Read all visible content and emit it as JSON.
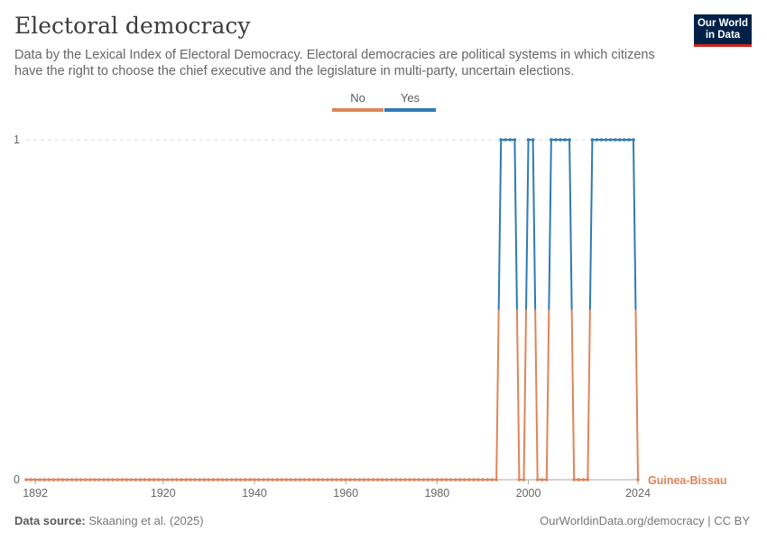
{
  "header": {
    "title": "Electoral democracy",
    "subtitle": "Data by the Lexical Index of Electoral Democracy. Electoral democracies are political systems in which citizens have the right to choose the chief executive and the legislature in multi-party, uncertain elections.",
    "logo_line1": "Our World",
    "logo_line2": "in Data"
  },
  "legend": [
    {
      "label": "No",
      "color": "#e0845a"
    },
    {
      "label": "Yes",
      "color": "#2f7bb5"
    }
  ],
  "footer": {
    "source_label": "Data source:",
    "source_text": "Skaaning et al. (2025)",
    "right_text": "OurWorldinData.org/democracy | CC BY"
  },
  "chart_data": {
    "type": "line",
    "title": "Electoral democracy",
    "series": [
      {
        "name": "Guinea-Bissau",
        "x_start": 1890,
        "x_end": 2024,
        "yes_years": [
          1994,
          1995,
          1996,
          1997,
          2000,
          2001,
          2005,
          2006,
          2007,
          2008,
          2009,
          2014,
          2015,
          2016,
          2017,
          2018,
          2019,
          2020,
          2021,
          2022,
          2023
        ]
      }
    ],
    "y_ticks": [
      "0",
      "1"
    ],
    "x_ticks": [
      "1892",
      "1920",
      "1940",
      "1960",
      "1980",
      "2000",
      "2024"
    ],
    "xlim": [
      1890,
      2024
    ],
    "ylim": [
      0,
      1
    ],
    "colors": {
      "no": "#e0845a",
      "yes": "#2f7bb5"
    },
    "grid": true
  }
}
